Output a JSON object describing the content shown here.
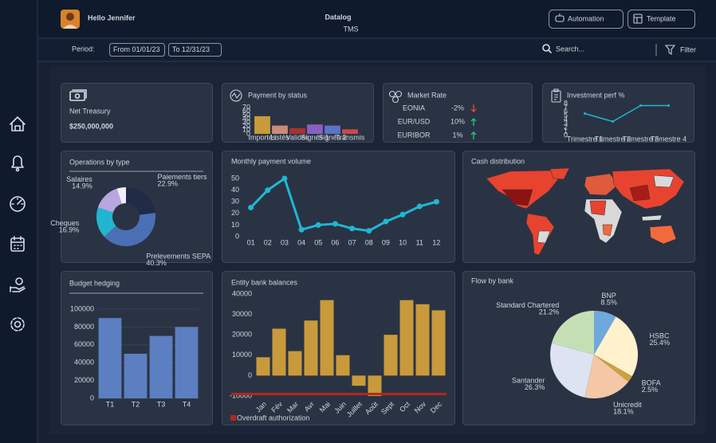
{
  "header": {
    "greeting": "Hello Jennifer",
    "logo": "Datalog",
    "logo_subtitle": "TMS",
    "buttons": [
      "Automation",
      "Template"
    ]
  },
  "filters": {
    "period_label": "Period:",
    "from": "From 01/01/23",
    "to": "To 12/31/23",
    "search": "Search...",
    "filter": "Filter"
  },
  "net_treasury": {
    "title": "Net Treasury",
    "amount": "$250,000,000"
  },
  "market_rate": {
    "title": "Market Rate",
    "rows": [
      {
        "name": "EONIA",
        "change": "-2%",
        "trend": "down"
      },
      {
        "name": "EUR/USD",
        "change": "10%",
        "trend": "up"
      },
      {
        "name": "EURIBOR",
        "change": "1%",
        "trend": "up"
      }
    ]
  },
  "cash_distribution": {
    "title": "Cash distribution"
  },
  "chart_data": [
    {
      "type": "bar",
      "title": "Payment by status",
      "categories": [
        "Importés",
        "Listés",
        "Validés",
        "Signés 1",
        "Signés 2",
        "Transmis"
      ],
      "values": [
        47,
        22,
        15,
        25,
        22,
        12
      ],
      "colors": [
        "#c99a3b",
        "#c98b7a",
        "#a83232",
        "#8a5fc0",
        "#5b74c4",
        "#c94b4b"
      ],
      "ylim": [
        0,
        70
      ],
      "yticks": [
        0,
        10,
        20,
        30,
        40,
        50,
        60,
        70
      ],
      "grid": false
    },
    {
      "type": "line",
      "title": "Investment perf %",
      "categories": [
        "Trimestre 1",
        "Trimestre 2",
        "Trimestre 3",
        "Trimestre 4"
      ],
      "values": [
        5.5,
        3.5,
        7.5,
        7.5
      ],
      "color": "#1fb8d3",
      "ylim": [
        0,
        8
      ],
      "yticks": [
        0,
        1,
        2,
        3,
        4,
        5,
        6,
        7,
        8
      ],
      "grid": false
    },
    {
      "type": "donut",
      "title": "Operations by type",
      "categories": [
        "Paiements tiers",
        "Prelevements SEPA",
        "Cheques",
        "Salaires",
        null
      ],
      "values": [
        22.9,
        40.3,
        16.9,
        14.9,
        5.0
      ],
      "value_labels": [
        "22.9%",
        "40.3%",
        "16.9%",
        "14.9%",
        null
      ],
      "colors": [
        "#1f2b47",
        "#4a6fb5",
        "#22b5d0",
        "#b9a6e0",
        "#f1eff8"
      ]
    },
    {
      "type": "line",
      "title": "Monthly payment volume",
      "categories": [
        "01",
        "02",
        "03",
        "04",
        "05",
        "06",
        "07",
        "08",
        "09",
        "10",
        "11",
        "12"
      ],
      "values": [
        25,
        40,
        50,
        6,
        10,
        11,
        7,
        5,
        13,
        19,
        26,
        30
      ],
      "color": "#1fb8d3",
      "ylim": [
        0,
        50
      ],
      "yticks": [
        0,
        10,
        20,
        30,
        40,
        50
      ],
      "grid": false
    },
    {
      "type": "bar",
      "title": "Budget hedging",
      "categories": [
        "T1",
        "T2",
        "T3",
        "T4"
      ],
      "values": [
        90000,
        50000,
        70000,
        80000
      ],
      "color": "#5b7fc0",
      "ylim": [
        0,
        100000
      ],
      "yticks": [
        0,
        20000,
        40000,
        60000,
        80000,
        100000
      ],
      "grid": true
    },
    {
      "type": "bar",
      "title": "Entity bank balances",
      "categories": [
        "Jan",
        "Fév",
        "Mar",
        "Avr",
        "Mai",
        "Juin",
        "Juillet",
        "Août",
        "Sept",
        "Oct",
        "Nov",
        "Dec"
      ],
      "values": [
        9000,
        23000,
        12000,
        27000,
        37000,
        10000,
        -5000,
        -10000,
        20000,
        37000,
        35000,
        32000
      ],
      "color": "#c99a3b",
      "ylim": [
        -10000,
        40000
      ],
      "yticks": [
        -10000,
        0,
        10000,
        20000,
        30000,
        40000
      ],
      "grid": false,
      "reference_line": {
        "label": "Overdraft authorization",
        "value": -9000,
        "color": "#b5261e"
      }
    },
    {
      "type": "pie",
      "title": "Flow by bank",
      "categories": [
        "BNP",
        "HSBC",
        "BOFA",
        "Unicredit",
        "Santander",
        "Standard Chartered"
      ],
      "values": [
        8.5,
        25.4,
        2.5,
        18.1,
        26.3,
        21.2
      ],
      "value_labels": [
        "8.5%",
        "25.4%",
        "2.5%",
        "18.1%",
        "26.3%",
        "21.2%"
      ],
      "colors": [
        "#6fa8dc",
        "#fff2cc",
        "#c9a23f",
        "#f4c7a6",
        "#dde3f3",
        "#c5dfb5"
      ]
    }
  ]
}
